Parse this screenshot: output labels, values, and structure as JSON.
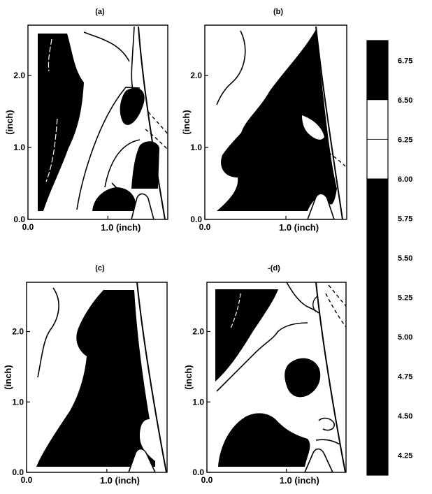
{
  "chart_data": {
    "type": "heatmap",
    "panels": [
      {
        "id": "a",
        "label": "(a)",
        "xlabel": "1.0 (inch)",
        "ylabel": "(inch)",
        "x_ticks": [
          "0.0",
          "1.0"
        ],
        "y_ticks": [
          "0.0",
          "1.0",
          "2.0"
        ],
        "xlim": [
          0.0,
          1.75
        ],
        "ylim": [
          0.0,
          2.7
        ]
      },
      {
        "id": "b",
        "label": "(b)",
        "xlabel": "1.0 (inch)",
        "ylabel": "(inch)",
        "x_ticks": [
          "0.0",
          "1.0"
        ],
        "y_ticks": [
          "0.0",
          "1.0",
          "2.0"
        ],
        "xlim": [
          0.0,
          1.75
        ],
        "ylim": [
          0.0,
          2.7
        ]
      },
      {
        "id": "c",
        "label": "(c)",
        "xlabel": "1.0 (inch)",
        "ylabel": "(inch)",
        "x_ticks": [
          "0.0",
          "1.0"
        ],
        "y_ticks": [
          "0.0",
          "1.0",
          "2.0"
        ],
        "xlim": [
          0.0,
          1.75
        ],
        "ylim": [
          0.0,
          2.7
        ]
      },
      {
        "id": "d",
        "label": "-(d)",
        "xlabel": "1.0 (inch)",
        "ylabel": "(inch)",
        "x_ticks": [
          "0.0",
          "1.0"
        ],
        "y_ticks": [
          "0.0",
          "1.0",
          "2.0"
        ],
        "xlim": [
          0.0,
          1.75
        ],
        "ylim": [
          0.0,
          2.7
        ]
      }
    ],
    "colorbar": {
      "ticks": [
        "6.75",
        "6.50",
        "6.25",
        "6.00",
        "5.75",
        "5.50",
        "5.25",
        "5.00",
        "4.75",
        "4.50",
        "4.25"
      ],
      "range": [
        4.125,
        6.875
      ],
      "bands": [
        {
          "from": 6.5,
          "to": 6.875,
          "color": "#000000"
        },
        {
          "from": 6.25,
          "to": 6.5,
          "color": "#ffffff"
        },
        {
          "from": 6.0,
          "to": 6.25,
          "color": "#ffffff"
        },
        {
          "from": 4.125,
          "to": 6.0,
          "color": "#000000"
        }
      ]
    },
    "colors": {
      "fill": "#000000",
      "background": "#ffffff"
    }
  }
}
